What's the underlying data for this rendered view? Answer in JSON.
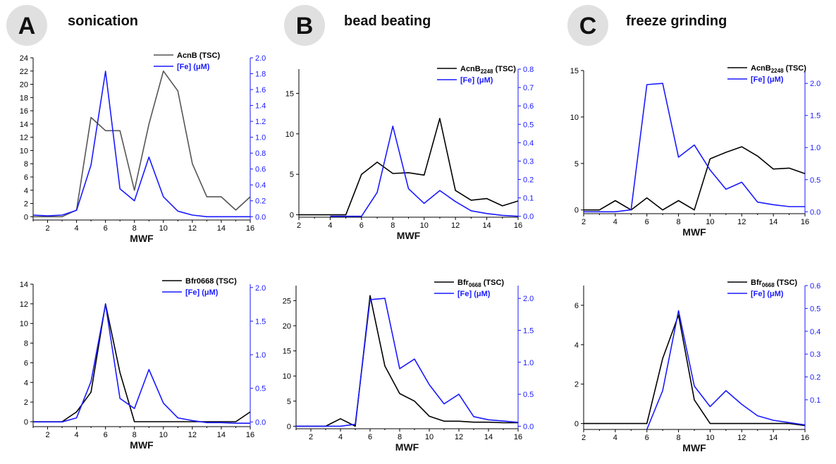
{
  "panels": [
    {
      "letter": "A",
      "title": "sonication"
    },
    {
      "letter": "B",
      "title": "bead beating"
    },
    {
      "letter": "C",
      "title": "freeze grinding"
    }
  ],
  "colors": {
    "tsc_dark": "#000000",
    "tsc_gray": "#555555",
    "fe": "#1a1aff",
    "circle": "#e0e0e0"
  },
  "chart_data": [
    {
      "type": "line",
      "panel": "A",
      "row": "top",
      "xlabel": "MWF",
      "xlim": [
        1,
        16
      ],
      "xticks": [
        2,
        4,
        6,
        8,
        10,
        12,
        14,
        16
      ],
      "ylim_left": [
        -0.5,
        24
      ],
      "yticks_left": [
        0,
        2,
        4,
        6,
        8,
        10,
        12,
        14,
        16,
        18,
        20,
        22,
        24
      ],
      "ylim_right": [
        -0.042,
        2.0
      ],
      "yticks_right": [
        0.0,
        0.2,
        0.4,
        0.6,
        0.8,
        1.0,
        1.2,
        1.4,
        1.6,
        1.8,
        2.0
      ],
      "series": [
        {
          "name": "AcnB (TSC)",
          "axis": "left",
          "color": "#555555",
          "x": [
            1,
            2,
            3,
            4,
            5,
            6,
            7,
            8,
            9,
            10,
            11,
            12,
            13,
            14,
            15,
            16
          ],
          "y": [
            0,
            0,
            0,
            1,
            15,
            13,
            13,
            4,
            14,
            22,
            19,
            8,
            3,
            3,
            1,
            3
          ]
        },
        {
          "name": "[Fe] (μM)",
          "axis": "right",
          "color": "#1a1aff",
          "x": [
            1,
            2,
            3,
            4,
            5,
            6,
            7,
            8,
            9,
            10,
            11,
            12,
            13,
            14,
            15,
            16
          ],
          "y": [
            0.02,
            0.01,
            0.02,
            0.08,
            0.65,
            1.83,
            0.35,
            0.2,
            0.75,
            0.25,
            0.07,
            0.02,
            0.0,
            0.0,
            0.0,
            0.0
          ]
        }
      ]
    },
    {
      "type": "line",
      "panel": "A",
      "row": "bottom",
      "xlabel": "MWF",
      "xlim": [
        1,
        16
      ],
      "xticks": [
        2,
        4,
        6,
        8,
        10,
        12,
        14,
        16
      ],
      "ylim_left": [
        -0.5,
        14
      ],
      "yticks_left": [
        0,
        2,
        4,
        6,
        8,
        10,
        12,
        14
      ],
      "ylim_right": [
        -0.07,
        2.05
      ],
      "yticks_right": [
        0.0,
        0.5,
        1.0,
        1.5,
        2.0
      ],
      "series": [
        {
          "name": "Bfr0668 (TSC)",
          "axis": "left",
          "color": "#000000",
          "x": [
            1,
            2,
            3,
            4,
            5,
            6,
            7,
            8,
            9,
            10,
            11,
            12,
            13,
            14,
            15,
            16
          ],
          "y": [
            0,
            0,
            0,
            1,
            3,
            12,
            5,
            0,
            0,
            0,
            0,
            0,
            0,
            0,
            0,
            1
          ]
        },
        {
          "name": "[Fe] (μM)",
          "axis": "right",
          "color": "#1a1aff",
          "x": [
            1,
            2,
            3,
            4,
            5,
            6,
            7,
            8,
            9,
            10,
            11,
            12,
            13,
            14,
            15,
            16
          ],
          "y": [
            0.0,
            0.0,
            0.0,
            0.06,
            0.6,
            1.75,
            0.35,
            0.2,
            0.78,
            0.28,
            0.06,
            0.02,
            -0.01,
            -0.01,
            -0.02,
            -0.02
          ]
        }
      ]
    },
    {
      "type": "line",
      "panel": "B",
      "row": "top",
      "xlabel": "MWF",
      "xlim": [
        2,
        16
      ],
      "xticks": [
        2,
        4,
        6,
        8,
        10,
        12,
        14,
        16
      ],
      "ylim_left": [
        -0.3,
        18
      ],
      "yticks_left": [
        0,
        5,
        10,
        15
      ],
      "ylim_right": [
        -0.005,
        0.8
      ],
      "yticks_right": [
        0.0,
        0.1,
        0.2,
        0.3,
        0.4,
        0.5,
        0.6,
        0.7,
        0.8
      ],
      "series": [
        {
          "name": "AcnB",
          "name_sub": "2248",
          "name_suffix": "(TSC)",
          "axis": "left",
          "color": "#000000",
          "x": [
            2,
            3,
            4,
            5,
            6,
            7,
            8,
            9,
            10,
            11,
            12,
            13,
            14,
            15,
            16
          ],
          "y": [
            0,
            0,
            0,
            0,
            5,
            6.5,
            5.1,
            5.2,
            4.9,
            11.9,
            3.0,
            1.8,
            2.0,
            1.1,
            1.7
          ]
        },
        {
          "name": "[Fe] (μM)",
          "axis": "right",
          "color": "#1a1aff",
          "x": [
            4,
            5,
            6,
            7,
            8,
            9,
            10,
            11,
            12,
            13,
            14,
            15,
            16
          ],
          "y": [
            0.0,
            0.0,
            0.0,
            0.13,
            0.49,
            0.15,
            0.07,
            0.14,
            0.08,
            0.03,
            0.015,
            0.005,
            0.0
          ]
        }
      ]
    },
    {
      "type": "line",
      "panel": "B",
      "row": "bottom",
      "xlabel": "MWF",
      "xlim": [
        1,
        16
      ],
      "xticks": [
        2,
        4,
        6,
        8,
        10,
        12,
        14,
        16
      ],
      "ylim_left": [
        -0.5,
        28
      ],
      "yticks_left": [
        0,
        5,
        10,
        15,
        20,
        25
      ],
      "ylim_right": [
        -0.04,
        2.2
      ],
      "yticks_right": [
        0.0,
        0.5,
        1.0,
        1.5,
        2.0
      ],
      "series": [
        {
          "name": "Bfr",
          "name_sub": "0668",
          "name_suffix": "(TSC)",
          "axis": "left",
          "color": "#000000",
          "x": [
            1,
            2,
            3,
            4,
            5,
            6,
            7,
            8,
            9,
            10,
            11,
            12,
            13,
            14,
            15,
            16
          ],
          "y": [
            0,
            0,
            0,
            1.5,
            0,
            26,
            12,
            6.5,
            5,
            2,
            1,
            1,
            0.8,
            0.8,
            0.7,
            0.7
          ]
        },
        {
          "name": "[Fe] (μM)",
          "axis": "right",
          "color": "#1a1aff",
          "x": [
            1,
            2,
            3,
            4,
            5,
            6,
            7,
            8,
            9,
            10,
            11,
            12,
            13,
            14,
            15,
            16
          ],
          "y": [
            0.0,
            0.0,
            0.0,
            0.0,
            0.03,
            1.98,
            2.0,
            0.9,
            1.05,
            0.65,
            0.35,
            0.5,
            0.15,
            0.1,
            0.08,
            0.06
          ]
        }
      ]
    },
    {
      "type": "line",
      "panel": "C",
      "row": "top",
      "xlabel": "MWF",
      "xlim": [
        2,
        16
      ],
      "xticks": [
        2,
        4,
        6,
        8,
        10,
        12,
        14,
        16
      ],
      "ylim_left": [
        -0.4,
        15
      ],
      "yticks_left": [
        0,
        5,
        10,
        15
      ],
      "ylim_right": [
        -0.03,
        2.2
      ],
      "yticks_right": [
        0.0,
        0.5,
        1.0,
        1.5,
        2.0
      ],
      "series": [
        {
          "name": "AcnB",
          "name_sub": "2248",
          "name_suffix": "(TSC)",
          "axis": "left",
          "color": "#000000",
          "x": [
            2,
            3,
            4,
            5,
            6,
            7,
            8,
            9,
            10,
            11,
            12,
            13,
            14,
            15,
            16
          ],
          "y": [
            0,
            0,
            1,
            0,
            1.3,
            0,
            1,
            0,
            5.5,
            6.2,
            6.8,
            5.8,
            4.4,
            4.5,
            3.9
          ]
        },
        {
          "name": "[Fe] (μM)",
          "axis": "right",
          "color": "#1a1aff",
          "x": [
            2,
            3,
            4,
            5,
            6,
            7,
            8,
            9,
            10,
            11,
            12,
            13,
            14,
            15,
            16
          ],
          "y": [
            0.0,
            0.0,
            0.0,
            0.03,
            1.98,
            2.0,
            0.85,
            1.04,
            0.65,
            0.35,
            0.46,
            0.15,
            0.11,
            0.08,
            0.08
          ]
        }
      ]
    },
    {
      "type": "line",
      "panel": "C",
      "row": "bottom",
      "xlabel": "MWF",
      "xlim": [
        2,
        16
      ],
      "xticks": [
        2,
        4,
        6,
        8,
        10,
        12,
        14,
        16
      ],
      "ylim_left": [
        -0.3,
        7
      ],
      "yticks_left": [
        0,
        2,
        4,
        6
      ],
      "ylim_right": [
        -0.03,
        0.6
      ],
      "yticks_right": [
        0.1,
        0.2,
        0.3,
        0.4,
        0.5,
        0.6
      ],
      "series": [
        {
          "name": "Bfr",
          "name_sub": "0668",
          "name_suffix": "(TSC)",
          "axis": "left",
          "color": "#000000",
          "x": [
            2,
            3,
            4,
            5,
            6,
            7,
            8,
            9,
            10,
            11,
            12,
            13,
            14,
            15,
            16
          ],
          "y": [
            0,
            0,
            0,
            0,
            0,
            3.3,
            5.5,
            1.2,
            0,
            0,
            0,
            0,
            0,
            0,
            -0.1
          ]
        },
        {
          "name": "[Fe] (μM)",
          "axis": "right",
          "color": "#1a1aff",
          "x": [
            6,
            7,
            8,
            9,
            10,
            11,
            12,
            13,
            14,
            15,
            16
          ],
          "y": [
            -0.03,
            0.14,
            0.49,
            0.16,
            0.07,
            0.14,
            0.08,
            0.03,
            0.01,
            0.0,
            -0.01
          ]
        }
      ]
    }
  ]
}
